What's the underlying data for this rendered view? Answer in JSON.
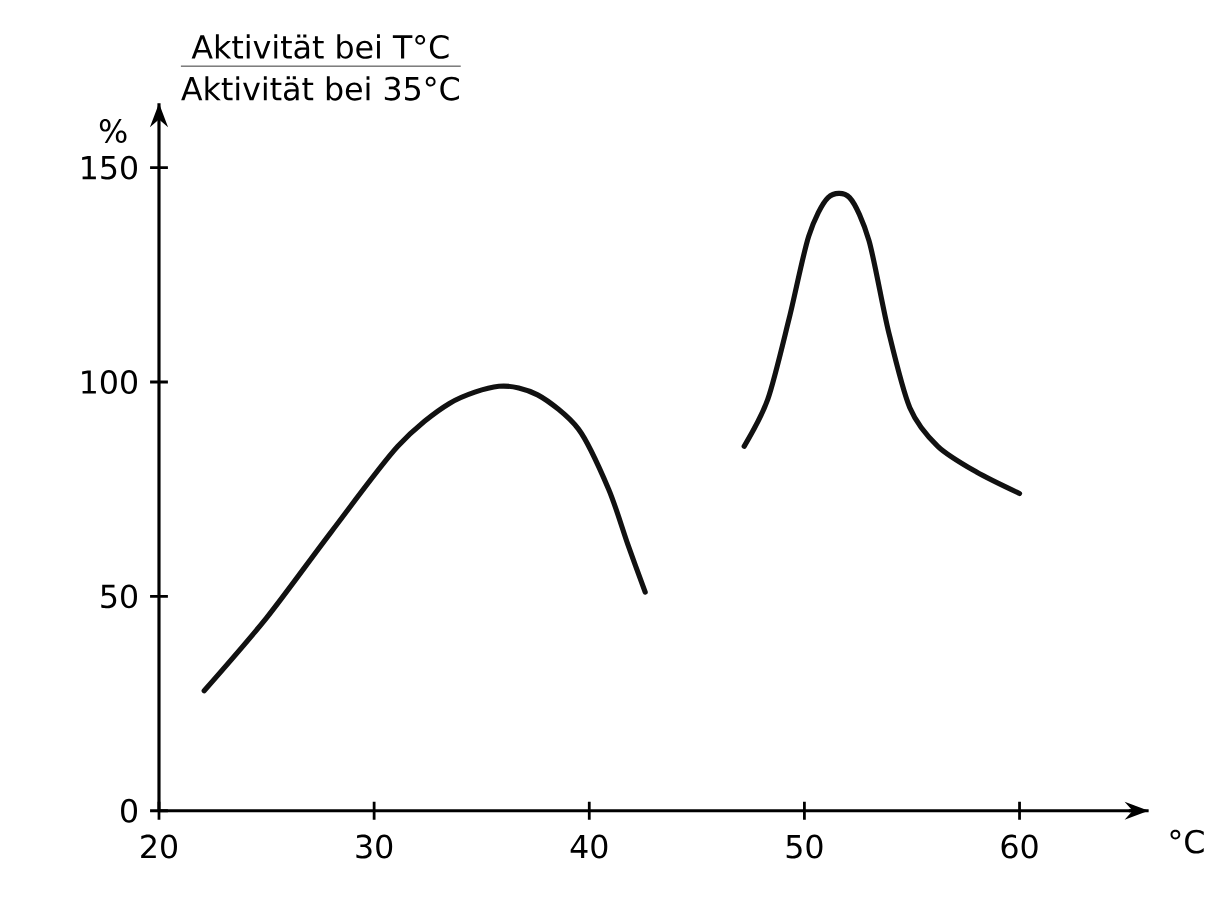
{
  "chart_data": {
    "type": "line",
    "title": "Aktivität bei T°C",
    "subtitle": "Aktivität bei 35°C",
    "ylabel": "%",
    "xlabel": "°C",
    "xlim": [
      20,
      66
    ],
    "ylim": [
      0,
      165
    ],
    "xticks": [
      20,
      30,
      40,
      50,
      60
    ],
    "yticks": [
      0,
      50,
      100,
      150
    ],
    "grid": false,
    "marker": "none",
    "line_style": "solid",
    "series": [
      {
        "color": "#111111",
        "x": [
          22.1,
          25,
          28,
          31.1,
          33.5,
          35.8,
          37.6,
          39.5,
          40.9,
          41.8,
          42.6
        ],
        "values": [
          28,
          45,
          65,
          85,
          95,
          99,
          97,
          89,
          75,
          62,
          51
        ]
      },
      {
        "color": "#111111",
        "x": [
          47.2,
          48.3,
          49.3,
          50.2,
          51.1,
          52.1,
          53.0,
          53.9,
          54.9,
          56.2,
          58.0,
          60
        ],
        "values": [
          85,
          96,
          115,
          134,
          143,
          143,
          133,
          112,
          94,
          85,
          79,
          74
        ]
      }
    ]
  }
}
